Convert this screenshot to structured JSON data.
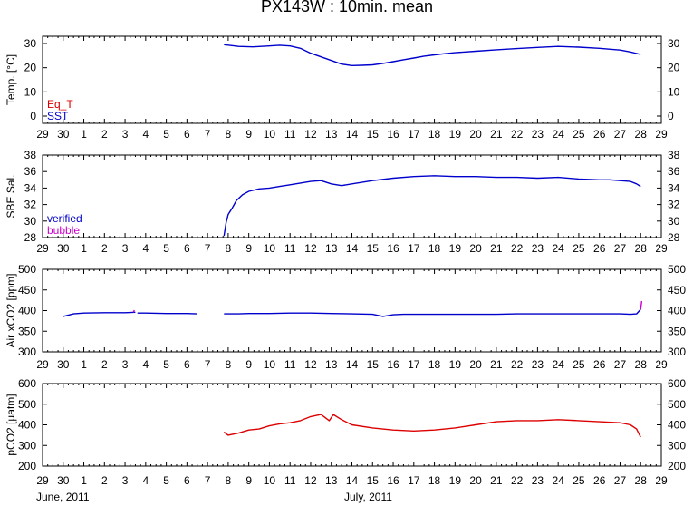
{
  "title": "PX143W : 10min. mean",
  "month_labels": [
    "June, 2011",
    "July, 2011"
  ],
  "day_tick_labels": [
    "29",
    "30",
    "1",
    "2",
    "3",
    "4",
    "5",
    "6",
    "7",
    "8",
    "9",
    "10",
    "11",
    "12",
    "13",
    "14",
    "15",
    "16",
    "17",
    "18",
    "19",
    "20",
    "21",
    "22",
    "23",
    "24",
    "25",
    "26",
    "27",
    "28",
    "29"
  ],
  "colors": {
    "red": "#dd0000",
    "blue": "#0000cc",
    "magenta": "#cc00cc",
    "frame": "#000000"
  },
  "chart_data": [
    {
      "type": "line",
      "ylabel": "Temp. [°C]",
      "ylim": [
        -3,
        33
      ],
      "y_ticks": [
        0,
        10,
        20,
        30
      ],
      "xlim": [
        0,
        30
      ],
      "legend": {
        "placement": "bottom-left",
        "entries": [
          {
            "name": "Eq_T",
            "color": "#dd0000"
          },
          {
            "name": "SST",
            "color": "#0000cc"
          }
        ]
      },
      "series": [
        {
          "name": "SST",
          "color": "#0000cc",
          "segments": [
            {
              "x": [
                8.8,
                9.5,
                10.2,
                10.8,
                11.5,
                12.0,
                12.5,
                13.0,
                13.5,
                14.0,
                14.5,
                15.0,
                15.5,
                16.0,
                16.5,
                17.0,
                17.5,
                18.0,
                18.5,
                19.0,
                19.5,
                20.0,
                21.0,
                22.0,
                23.0,
                24.0,
                25.0,
                26.0,
                27.0,
                28.0,
                28.5,
                29.0
              ],
              "y": [
                29.5,
                28.8,
                28.6,
                28.9,
                29.3,
                29.0,
                28.0,
                26.0,
                24.5,
                23.0,
                21.5,
                20.9,
                21.0,
                21.2,
                21.8,
                22.5,
                23.3,
                24.0,
                24.8,
                25.3,
                25.8,
                26.2,
                26.8,
                27.4,
                27.9,
                28.4,
                28.8,
                28.5,
                28.0,
                27.3,
                26.5,
                25.5
              ]
            }
          ]
        }
      ]
    },
    {
      "type": "line",
      "ylabel": "SBE Sal.",
      "ylim": [
        28,
        38
      ],
      "y_ticks": [
        28,
        30,
        32,
        34,
        36,
        38
      ],
      "xlim": [
        0,
        30
      ],
      "legend": {
        "placement": "bottom-left",
        "entries": [
          {
            "name": "verified",
            "color": "#0000cc"
          },
          {
            "name": "bubble",
            "color": "#cc00cc"
          }
        ]
      },
      "series": [
        {
          "name": "verified",
          "color": "#0000cc",
          "segments": [
            {
              "x": [
                8.8,
                8.9,
                9.0,
                9.2,
                9.4,
                9.7,
                10.0,
                10.5,
                11.0,
                11.5,
                12.0,
                12.5,
                13.0,
                13.5,
                14.0,
                14.5,
                15.0,
                16.0,
                17.0,
                18.0,
                19.0,
                20.0,
                21.0,
                22.0,
                23.0,
                24.0,
                25.0,
                26.0,
                27.0,
                27.5,
                28.0,
                28.5,
                28.8,
                29.0
              ],
              "y": [
                28.2,
                29.8,
                30.8,
                31.6,
                32.5,
                33.2,
                33.6,
                33.9,
                34.0,
                34.2,
                34.4,
                34.6,
                34.8,
                34.9,
                34.5,
                34.3,
                34.5,
                34.9,
                35.2,
                35.4,
                35.5,
                35.4,
                35.4,
                35.3,
                35.3,
                35.2,
                35.3,
                35.1,
                35.0,
                35.0,
                34.9,
                34.8,
                34.5,
                34.2
              ]
            }
          ]
        }
      ]
    },
    {
      "type": "line",
      "ylabel": "Air xCO2 [ppm]",
      "ylim": [
        300,
        500
      ],
      "y_ticks": [
        300,
        350,
        400,
        450,
        500
      ],
      "xlim": [
        0,
        30
      ],
      "series": [
        {
          "name": "",
          "color": "#0000cc",
          "segments": [
            {
              "x": [
                1.0,
                1.5,
                2.0,
                3.0,
                4.0,
                4.5
              ],
              "y": [
                386,
                392,
                394,
                395,
                395,
                396
              ]
            },
            {
              "x": [
                4.6,
                5.0,
                6.0,
                7.0,
                7.5
              ],
              "y": [
                394,
                394,
                393,
                393,
                392
              ]
            },
            {
              "x": [
                8.8,
                9.5,
                10.0,
                11.0,
                12.0,
                13.0,
                14.0,
                15.0,
                16.0,
                16.5,
                17.0,
                17.5,
                18.0,
                19.0,
                20.0,
                21.0,
                22.0,
                23.0,
                24.0,
                25.0,
                26.0,
                27.0,
                28.0,
                28.5,
                28.8,
                29.0
              ],
              "y": [
                392,
                392,
                393,
                393,
                394,
                394,
                393,
                392,
                391,
                386,
                390,
                391,
                391,
                391,
                391,
                391,
                391,
                392,
                392,
                392,
                392,
                392,
                392,
                391,
                392,
                403
              ]
            }
          ]
        },
        {
          "name": "",
          "color": "#cc00cc",
          "segments": [
            {
              "x": [
                4.4,
                4.45
              ],
              "y": [
                396,
                401
              ]
            },
            {
              "x": [
                29.0,
                29.05
              ],
              "y": [
                403,
                423
              ]
            }
          ]
        }
      ]
    },
    {
      "type": "line",
      "ylabel": "pCO2 [µatm]",
      "ylim": [
        200,
        600
      ],
      "y_ticks": [
        200,
        300,
        400,
        500,
        600
      ],
      "xlim": [
        0,
        30
      ],
      "series": [
        {
          "name": "",
          "color": "#dd0000",
          "segments": [
            {
              "x": [
                8.8,
                9.0,
                9.5,
                10.0,
                10.5,
                11.0,
                11.5,
                12.0,
                12.5,
                13.0,
                13.5,
                13.9,
                14.1,
                14.5,
                15.0,
                16.0,
                17.0,
                18.0,
                19.0,
                20.0,
                21.0,
                22.0,
                23.0,
                24.0,
                25.0,
                26.0,
                27.0,
                28.0,
                28.5,
                28.8,
                29.0
              ],
              "y": [
                365,
                350,
                360,
                375,
                380,
                395,
                405,
                410,
                420,
                440,
                450,
                420,
                450,
                425,
                400,
                385,
                375,
                370,
                375,
                385,
                400,
                415,
                420,
                420,
                425,
                420,
                415,
                410,
                400,
                380,
                340
              ]
            }
          ]
        }
      ]
    }
  ]
}
